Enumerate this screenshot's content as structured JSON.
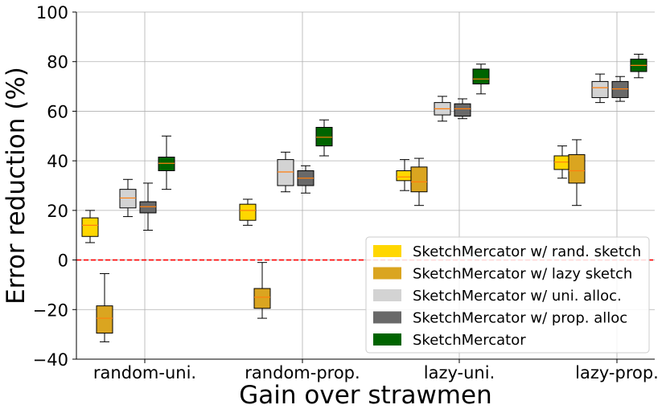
{
  "chart_data": {
    "type": "box",
    "xlabel": "Gain over strawmen",
    "ylabel": "Error reduction (%)",
    "ylim": [
      -40,
      100
    ],
    "yticks": [
      -40,
      -20,
      0,
      20,
      40,
      60,
      80,
      100
    ],
    "categories": [
      "random-uni.",
      "random-prop.",
      "lazy-uni.",
      "lazy-prop."
    ],
    "grid": true,
    "legend_position": "lower-right",
    "reference_line": {
      "y": 0,
      "color": "#ff0000",
      "style": "dashed"
    },
    "series": [
      {
        "name": "SketchMercator w/ rand. sketch",
        "color": "#ffd700",
        "boxes": [
          {
            "whislo": 7,
            "q1": 9.5,
            "med": 14,
            "q3": 17,
            "whishi": 20
          },
          {
            "whislo": 14,
            "q1": 16,
            "med": 20,
            "q3": 22.5,
            "whishi": 24.5
          },
          {
            "whislo": 28,
            "q1": 32,
            "med": 33.5,
            "q3": 36,
            "whishi": 40.5
          },
          {
            "whislo": 33,
            "q1": 36.5,
            "med": 39.5,
            "q3": 42,
            "whishi": 46
          }
        ]
      },
      {
        "name": "SketchMercator w/ lazy sketch",
        "color": "#daa520",
        "boxes": [
          {
            "whislo": -33,
            "q1": -29.5,
            "med": -23.5,
            "q3": -18.5,
            "whishi": -5.5
          },
          {
            "whislo": -23.5,
            "q1": -19.5,
            "med": -15,
            "q3": -11.5,
            "whishi": -1
          },
          {
            "whislo": 22,
            "q1": 27.5,
            "med": 31.5,
            "q3": 37.5,
            "whishi": 41
          },
          {
            "whislo": 22,
            "q1": 31,
            "med": 36,
            "q3": 42.5,
            "whishi": 48.5
          }
        ]
      },
      {
        "name": "SketchMercator w/ uni. alloc.",
        "color": "#d3d3d3",
        "boxes": [
          {
            "whislo": 17.5,
            "q1": 21,
            "med": 25,
            "q3": 28.5,
            "whishi": 32.5
          },
          {
            "whislo": 27.5,
            "q1": 30,
            "med": 35.5,
            "q3": 40.5,
            "whishi": 43.5
          },
          {
            "whislo": 56,
            "q1": 58.5,
            "med": 61,
            "q3": 63.5,
            "whishi": 66
          },
          {
            "whislo": 63.5,
            "q1": 65.5,
            "med": 69.5,
            "q3": 72,
            "whishi": 75
          }
        ]
      },
      {
        "name": "SketchMercator w/ prop. alloc",
        "color": "#696969",
        "boxes": [
          {
            "whislo": 12,
            "q1": 19,
            "med": 21.5,
            "q3": 23.5,
            "whishi": 31
          },
          {
            "whislo": 27,
            "q1": 30,
            "med": 33,
            "q3": 36,
            "whishi": 38
          },
          {
            "whislo": 57,
            "q1": 58,
            "med": 61,
            "q3": 63,
            "whishi": 65
          },
          {
            "whislo": 64,
            "q1": 65.5,
            "med": 69,
            "q3": 72,
            "whishi": 74
          }
        ]
      },
      {
        "name": "SketchMercator",
        "color": "#006400",
        "boxes": [
          {
            "whislo": 28.5,
            "q1": 36,
            "med": 39,
            "q3": 41.5,
            "whishi": 50
          },
          {
            "whislo": 42,
            "q1": 46,
            "med": 49.5,
            "q3": 53.5,
            "whishi": 56.5
          },
          {
            "whislo": 67,
            "q1": 71,
            "med": 73,
            "q3": 77,
            "whishi": 79
          },
          {
            "whislo": 73.5,
            "q1": 76,
            "med": 78.5,
            "q3": 81,
            "whishi": 83
          }
        ]
      }
    ]
  }
}
